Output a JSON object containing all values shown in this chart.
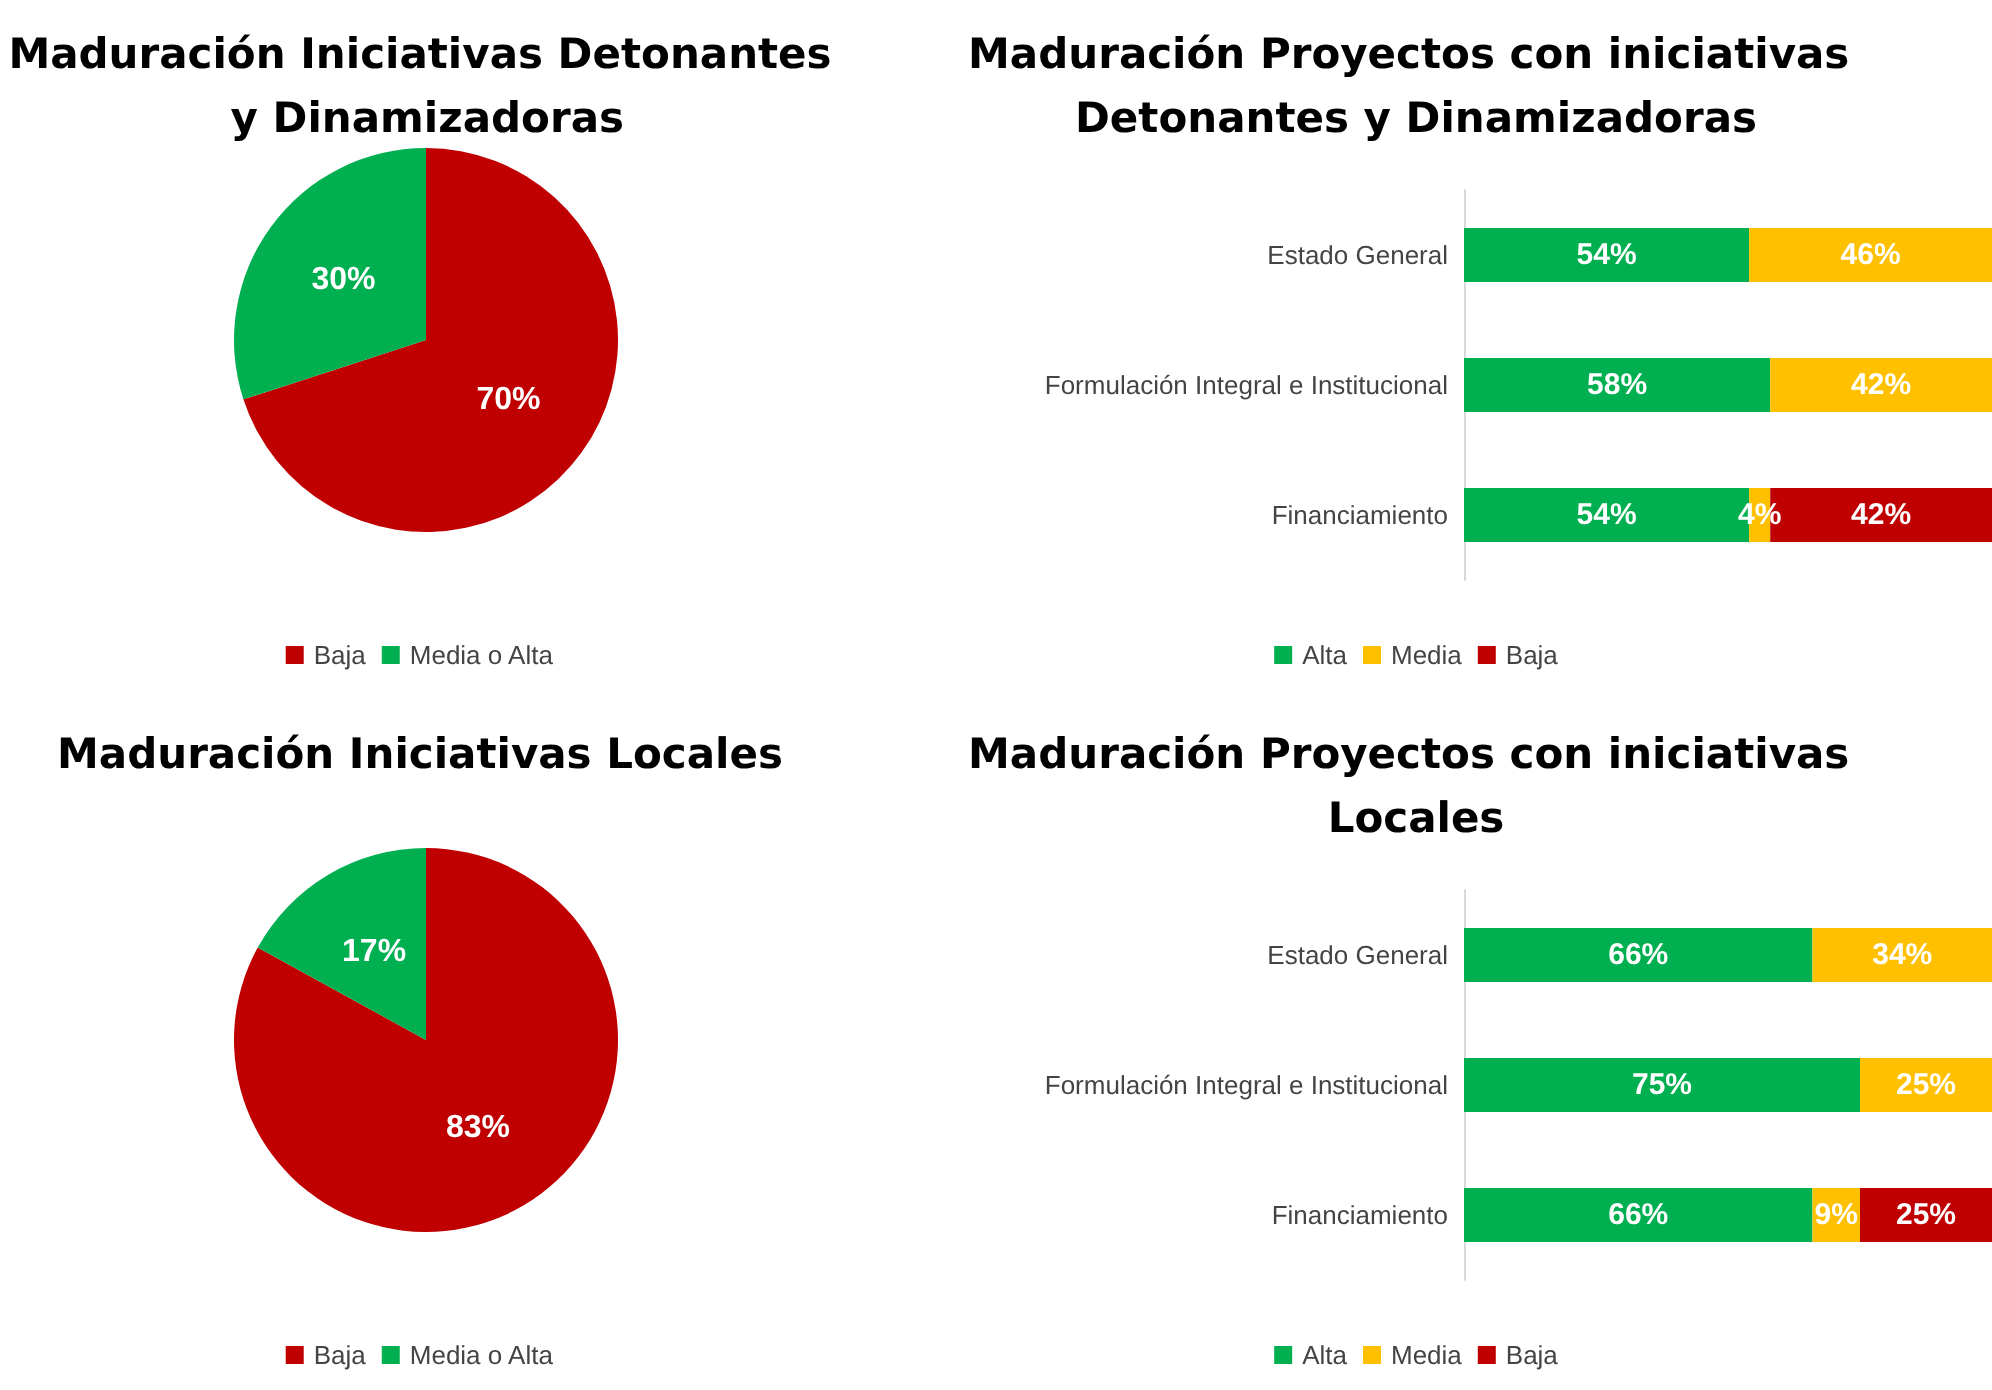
{
  "chart_data": [
    {
      "type": "pie",
      "title": "Maduración Iniciativas Detonantes y Dinamizadoras",
      "categories": [
        "Baja",
        "Media o Alta"
      ],
      "values": [
        70,
        30
      ],
      "colors": [
        "#c00000",
        "#00b050"
      ],
      "value_labels": [
        "70%",
        "30%"
      ],
      "legend": "bottom"
    },
    {
      "type": "bar",
      "orientation": "horizontal",
      "stacked": true,
      "title": "Maduración Proyectos con iniciativas Detonantes y Dinamizadoras",
      "categories": [
        "Estado General",
        "Formulación Integral e Institucional",
        "Financiamiento"
      ],
      "xlim": [
        0,
        100
      ],
      "tick_labels": "y",
      "legend": "bottom",
      "series": [
        {
          "name": "Alta",
          "color": "#00b050",
          "values": [
            54,
            58,
            54
          ],
          "value_labels": [
            "54%",
            "58%",
            "54%"
          ]
        },
        {
          "name": "Media",
          "color": "#ffc000",
          "values": [
            46,
            42,
            4
          ],
          "value_labels": [
            "46%",
            "42%",
            "4%"
          ]
        },
        {
          "name": "Baja",
          "color": "#c00000",
          "values": [
            0,
            0,
            42
          ],
          "value_labels": [
            null,
            null,
            "42%"
          ]
        }
      ]
    },
    {
      "type": "pie",
      "title": "Maduración Iniciativas Locales",
      "categories": [
        "Baja",
        "Media o Alta"
      ],
      "values": [
        83,
        17
      ],
      "colors": [
        "#c00000",
        "#00b050"
      ],
      "value_labels": [
        "83%",
        "17%"
      ],
      "legend": "bottom"
    },
    {
      "type": "bar",
      "orientation": "horizontal",
      "stacked": true,
      "title": "Maduración Proyectos con iniciativas Locales",
      "categories": [
        "Estado General",
        "Formulación Integral e Institucional",
        "Financiamiento"
      ],
      "xlim": [
        0,
        100
      ],
      "tick_labels": "y",
      "legend": "bottom",
      "series": [
        {
          "name": "Alta",
          "color": "#00b050",
          "values": [
            66,
            75,
            66
          ],
          "value_labels": [
            "66%",
            "75%",
            "66%"
          ]
        },
        {
          "name": "Media",
          "color": "#ffc000",
          "values": [
            34,
            25,
            9
          ],
          "value_labels": [
            "34%",
            "25%",
            "9%"
          ]
        },
        {
          "name": "Baja",
          "color": "#c00000",
          "values": [
            0,
            0,
            25
          ],
          "value_labels": [
            null,
            null,
            "25%"
          ]
        }
      ]
    }
  ]
}
